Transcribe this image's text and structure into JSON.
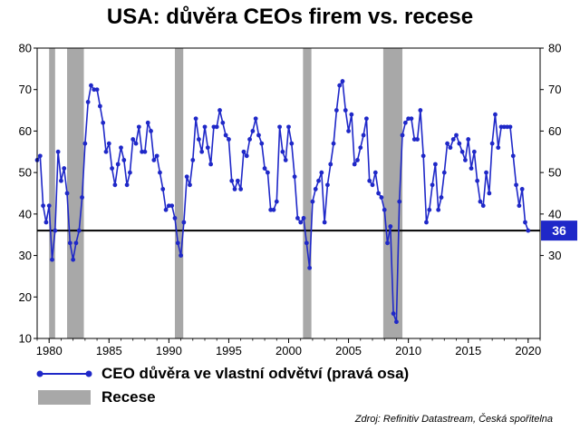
{
  "chart_data": {
    "type": "line",
    "title": "USA: důvěra CEOs firem vs. recese",
    "xlabel": "",
    "ylabel": "",
    "xlim": [
      1979,
      2021
    ],
    "ylim": [
      10,
      80
    ],
    "x_ticks": [
      "1980",
      "1985",
      "1990",
      "1995",
      "2000",
      "2005",
      "2010",
      "2015",
      "2020"
    ],
    "y_ticks_left": [
      "10",
      "20",
      "30",
      "40",
      "50",
      "60",
      "70",
      "80"
    ],
    "y_ticks_right": [
      "30",
      "40",
      "50",
      "60",
      "70",
      "80"
    ],
    "horizontal_line": 36,
    "last_value_label": "36",
    "grid": false,
    "legend": "bottom-left",
    "recessions": [
      [
        1980.0,
        1980.5
      ],
      [
        1981.5,
        1982.9
      ],
      [
        1990.5,
        1991.2
      ],
      [
        2001.2,
        2001.9
      ],
      [
        2007.9,
        2009.5
      ]
    ],
    "series": [
      {
        "name": "CEO důvěra ve vlastní odvětví (pravá osa)",
        "color": "#1f28c8",
        "x": [
          1979.0,
          1979.25,
          1979.5,
          1979.75,
          1980.0,
          1980.25,
          1980.5,
          1980.75,
          1981.0,
          1981.25,
          1981.5,
          1981.75,
          1982.0,
          1982.25,
          1982.5,
          1982.75,
          1983.0,
          1983.25,
          1983.5,
          1983.75,
          1984.0,
          1984.25,
          1984.5,
          1984.75,
          1985.0,
          1985.25,
          1985.5,
          1985.75,
          1986.0,
          1986.25,
          1986.5,
          1986.75,
          1987.0,
          1987.25,
          1987.5,
          1987.75,
          1988.0,
          1988.25,
          1988.5,
          1988.75,
          1989.0,
          1989.25,
          1989.5,
          1989.75,
          1990.0,
          1990.25,
          1990.5,
          1990.75,
          1991.0,
          1991.25,
          1991.5,
          1991.75,
          1992.0,
          1992.25,
          1992.5,
          1992.75,
          1993.0,
          1993.25,
          1993.5,
          1993.75,
          1994.0,
          1994.25,
          1994.5,
          1994.75,
          1995.0,
          1995.25,
          1995.5,
          1995.75,
          1996.0,
          1996.25,
          1996.5,
          1996.75,
          1997.0,
          1997.25,
          1997.5,
          1997.75,
          1998.0,
          1998.25,
          1998.5,
          1998.75,
          1999.0,
          1999.25,
          1999.5,
          1999.75,
          2000.0,
          2000.25,
          2000.5,
          2000.75,
          2001.0,
          2001.25,
          2001.5,
          2001.75,
          2002.0,
          2002.25,
          2002.5,
          2002.75,
          2003.0,
          2003.25,
          2003.5,
          2003.75,
          2004.0,
          2004.25,
          2004.5,
          2004.75,
          2005.0,
          2005.25,
          2005.5,
          2005.75,
          2006.0,
          2006.25,
          2006.5,
          2006.75,
          2007.0,
          2007.25,
          2007.5,
          2007.75,
          2008.0,
          2008.25,
          2008.5,
          2008.75,
          2009.0,
          2009.25,
          2009.5,
          2009.75,
          2010.0,
          2010.25,
          2010.5,
          2010.75,
          2011.0,
          2011.25,
          2011.5,
          2011.75,
          2012.0,
          2012.25,
          2012.5,
          2012.75,
          2013.0,
          2013.25,
          2013.5,
          2013.75,
          2014.0,
          2014.25,
          2014.5,
          2014.75,
          2015.0,
          2015.25,
          2015.5,
          2015.75,
          2016.0,
          2016.25,
          2016.5,
          2016.75,
          2017.0,
          2017.25,
          2017.5,
          2017.75,
          2018.0,
          2018.25,
          2018.5,
          2018.75,
          2019.0,
          2019.25,
          2019.5,
          2019.75,
          2020.0
        ],
        "values": [
          53,
          54,
          42,
          38,
          42,
          29,
          36,
          55,
          48,
          51,
          45,
          33,
          29,
          33,
          36,
          44,
          57,
          67,
          71,
          70,
          70,
          66,
          62,
          55,
          57,
          51,
          47,
          52,
          56,
          53,
          47,
          50,
          58,
          57,
          61,
          55,
          55,
          62,
          60,
          53,
          54,
          50,
          46,
          41,
          42,
          42,
          39,
          33,
          30,
          38,
          49,
          47,
          53,
          63,
          58,
          55,
          61,
          56,
          52,
          61,
          61,
          65,
          62,
          59,
          58,
          48,
          46,
          48,
          46,
          55,
          54,
          58,
          60,
          63,
          59,
          57,
          51,
          50,
          41,
          41,
          43,
          61,
          55,
          53,
          61,
          57,
          49,
          39,
          38,
          39,
          33,
          27,
          43,
          46,
          48,
          50,
          38,
          47,
          52,
          57,
          65,
          71,
          72,
          65,
          60,
          64,
          52,
          53,
          56,
          59,
          63,
          48,
          47,
          50,
          45,
          44,
          41,
          33,
          37,
          16,
          14,
          43,
          59,
          62,
          63,
          63,
          58,
          58,
          65,
          54,
          38,
          41,
          47,
          52,
          41,
          44,
          50,
          57,
          56,
          58,
          59,
          57,
          55,
          53,
          58,
          51,
          55,
          48,
          43,
          42,
          50,
          45,
          57,
          64,
          56,
          61,
          61,
          61,
          61,
          54,
          47,
          42,
          46,
          38,
          36
        ]
      },
      {
        "name": "Recese",
        "color": "#a8a8a8"
      }
    ]
  },
  "source": "Zdroj: Refinitiv Datastream, Česká spořitelna"
}
